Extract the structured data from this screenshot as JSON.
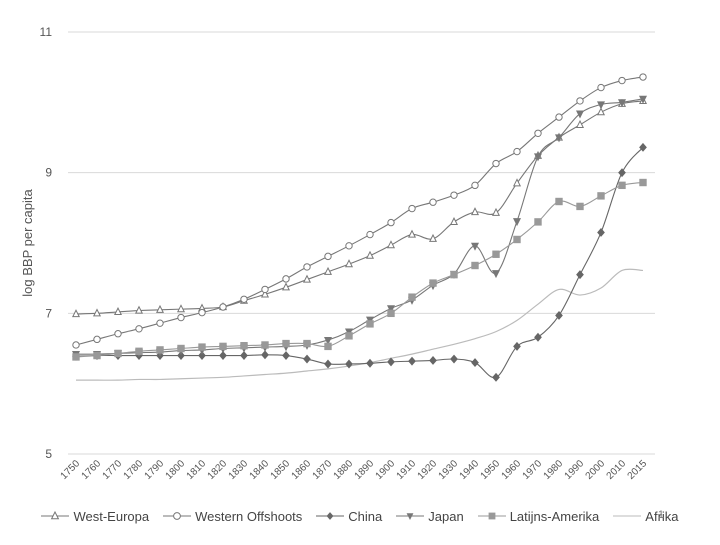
{
  "page_number": "1",
  "chart_data": {
    "type": "line",
    "ylabel": "log BBP per capita",
    "xlabel": "",
    "title": "",
    "ylim": [
      5,
      11
    ],
    "yticks": [
      "5",
      "7",
      "9",
      "11"
    ],
    "grid": "horizontal",
    "legend_position": "bottom",
    "categories": [
      "1750",
      "1760",
      "1770",
      "1780",
      "1790",
      "1800",
      "1810",
      "1820",
      "1830",
      "1840",
      "1850",
      "1860",
      "1870",
      "1880",
      "1890",
      "1900",
      "1910",
      "1920",
      "1930",
      "1940",
      "1950",
      "1960",
      "1970",
      "1980",
      "1990",
      "2000",
      "2010",
      "2015"
    ],
    "series": [
      {
        "name": "West-Europa",
        "marker": "triangle-up",
        "color": "#777777",
        "values": [
          6.99,
          7.0,
          7.02,
          7.04,
          7.05,
          7.06,
          7.07,
          7.09,
          7.18,
          7.27,
          7.37,
          7.48,
          7.59,
          7.7,
          7.82,
          7.97,
          8.12,
          8.06,
          8.3,
          8.44,
          8.43,
          8.85,
          9.24,
          9.5,
          9.68,
          9.86,
          9.98,
          10.02
        ]
      },
      {
        "name": "Western Offshoots",
        "marker": "circle",
        "color": "#777777",
        "values": [
          6.55,
          6.63,
          6.71,
          6.78,
          6.86,
          6.94,
          7.01,
          7.09,
          7.2,
          7.34,
          7.49,
          7.66,
          7.81,
          7.96,
          8.12,
          8.29,
          8.49,
          8.58,
          8.68,
          8.82,
          9.13,
          9.3,
          9.56,
          9.79,
          10.02,
          10.21,
          10.31,
          10.36
        ]
      },
      {
        "name": "China",
        "marker": "diamond",
        "color": "#666666",
        "values": [
          6.39,
          6.4,
          6.4,
          6.4,
          6.4,
          6.4,
          6.4,
          6.4,
          6.4,
          6.41,
          6.4,
          6.35,
          6.28,
          6.28,
          6.29,
          6.31,
          6.32,
          6.33,
          6.35,
          6.3,
          6.09,
          6.53,
          6.66,
          6.97,
          7.55,
          8.15,
          9.0,
          9.36
        ]
      },
      {
        "name": "Japan",
        "marker": "triangle-down",
        "color": "#777777",
        "values": [
          6.42,
          6.42,
          6.43,
          6.44,
          6.45,
          6.47,
          6.48,
          6.5,
          6.51,
          6.52,
          6.53,
          6.55,
          6.62,
          6.74,
          6.91,
          7.07,
          7.19,
          7.4,
          7.56,
          7.96,
          7.57,
          8.31,
          9.23,
          9.5,
          9.84,
          9.97,
          10.0,
          10.05
        ]
      },
      {
        "name": "Latijns-Amerika",
        "marker": "square",
        "color": "#999999",
        "values": [
          6.38,
          6.4,
          6.43,
          6.46,
          6.48,
          6.5,
          6.52,
          6.53,
          6.54,
          6.55,
          6.57,
          6.57,
          6.53,
          6.68,
          6.85,
          7.0,
          7.23,
          7.43,
          7.55,
          7.68,
          7.84,
          8.05,
          8.3,
          8.59,
          8.52,
          8.67,
          8.82,
          8.86
        ]
      },
      {
        "name": "Afrika",
        "marker": "none",
        "color": "#bbbbbb",
        "values": [
          6.05,
          6.05,
          6.05,
          6.06,
          6.06,
          6.07,
          6.08,
          6.09,
          6.11,
          6.13,
          6.15,
          6.18,
          6.21,
          6.25,
          6.3,
          6.36,
          6.42,
          6.49,
          6.56,
          6.64,
          6.74,
          6.9,
          7.13,
          7.34,
          7.26,
          7.36,
          7.61,
          7.61
        ]
      }
    ]
  }
}
